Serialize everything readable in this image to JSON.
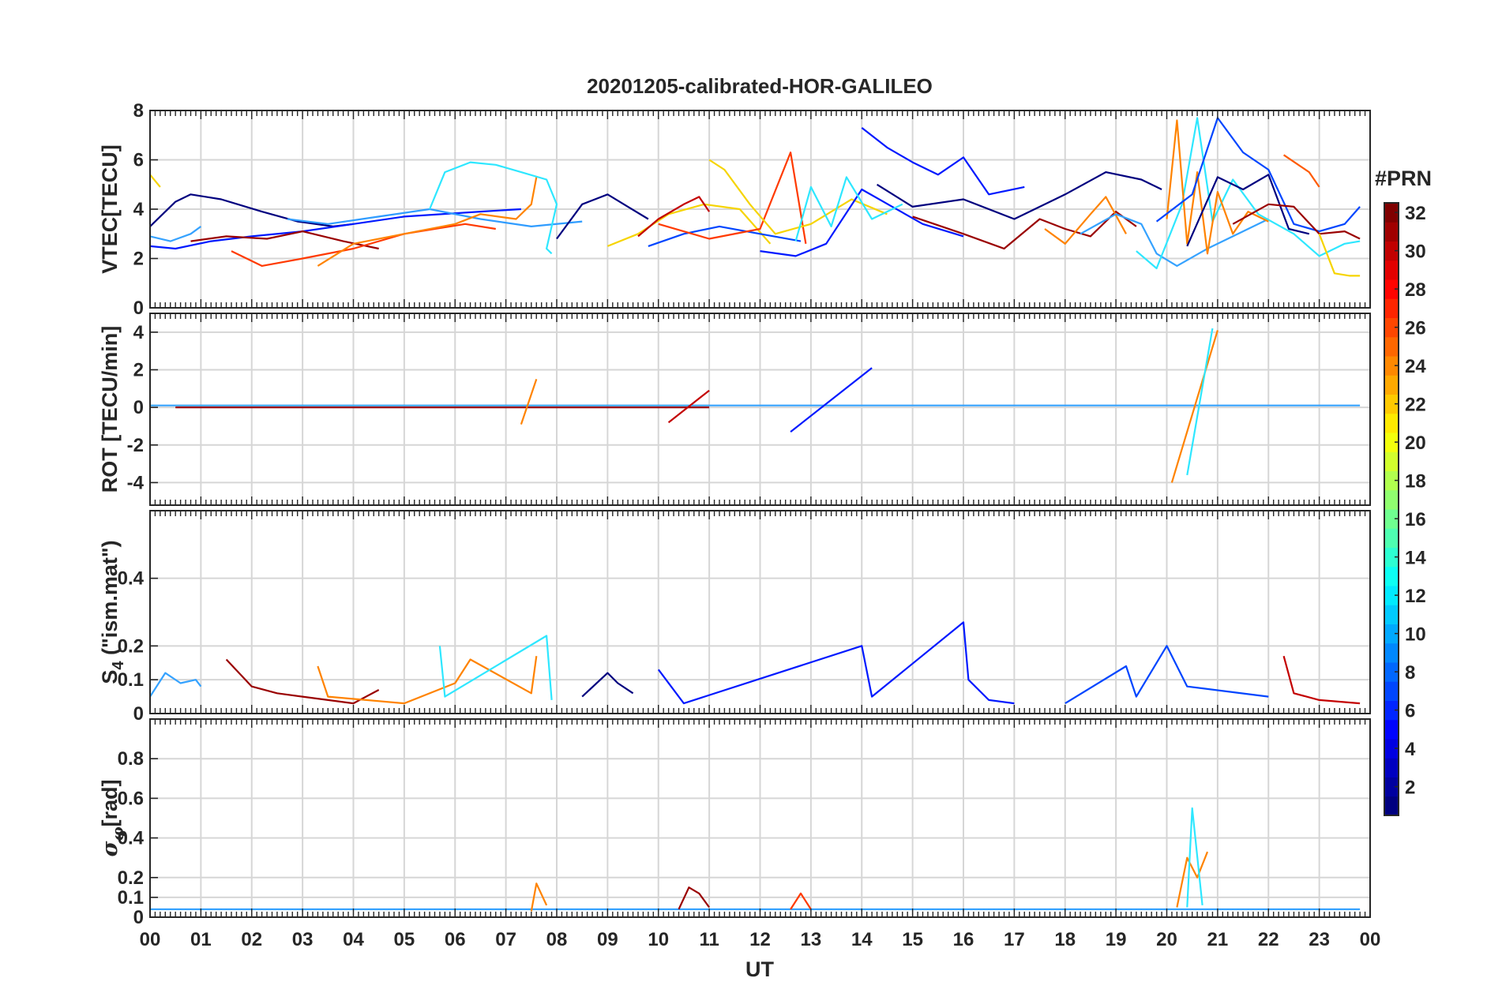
{
  "title": "20201205-calibrated-HOR-GALILEO",
  "colorbar": {
    "label": "#PRN",
    "min": 1,
    "max": 32,
    "ticks": [
      "2",
      "4",
      "6",
      "8",
      "10",
      "12",
      "14",
      "16",
      "18",
      "20",
      "22",
      "24",
      "26",
      "28",
      "30",
      "32"
    ],
    "tick_values": [
      2,
      4,
      6,
      8,
      10,
      12,
      14,
      16,
      18,
      20,
      22,
      24,
      26,
      28,
      30,
      32
    ],
    "colormap": "jet"
  },
  "chart_data": [
    {
      "type": "line",
      "panel": "vtec",
      "ylabel": "VTEC[TECU]",
      "ylim": [
        0,
        8
      ],
      "yticks": [
        0,
        2,
        4,
        6,
        8
      ],
      "ytick_labels": [
        "0",
        "2",
        "4",
        "6",
        "8"
      ],
      "xlim": [
        0,
        24
      ],
      "grid": true,
      "series": [
        {
          "color": "#f6d400",
          "x": [
            0.0,
            0.2
          ],
          "y": [
            5.4,
            4.9
          ]
        },
        {
          "color": "#00007f",
          "x": [
            0.0,
            0.5,
            0.8,
            1.4,
            2.2,
            2.9,
            3.6,
            4.0
          ],
          "y": [
            3.3,
            4.3,
            4.6,
            4.4,
            3.9,
            3.5,
            3.3,
            3.4
          ]
        },
        {
          "color": "#35a2ff",
          "x": [
            0.0,
            0.4,
            0.8,
            1.0
          ],
          "y": [
            2.9,
            2.7,
            3.0,
            3.3
          ]
        },
        {
          "color": "#0019ff",
          "x": [
            0.0,
            0.5,
            1.2,
            2.0,
            3.0,
            4.0,
            5.0,
            6.5,
            7.3
          ],
          "y": [
            2.5,
            2.4,
            2.7,
            2.9,
            3.1,
            3.4,
            3.7,
            3.9,
            4.0
          ]
        },
        {
          "color": "#9a0000",
          "x": [
            0.8,
            1.5,
            2.3,
            3.0,
            3.8,
            4.5
          ],
          "y": [
            2.7,
            2.9,
            2.8,
            3.1,
            2.7,
            2.4
          ]
        },
        {
          "color": "#ff3a00",
          "x": [
            1.6,
            2.2,
            3.0,
            4.0,
            5.0,
            6.2,
            6.8
          ],
          "y": [
            2.3,
            1.7,
            2.0,
            2.4,
            3.0,
            3.4,
            3.2
          ]
        },
        {
          "color": "#2f9cff",
          "x": [
            2.7,
            3.5,
            4.5,
            5.5,
            6.5,
            7.5,
            8.5
          ],
          "y": [
            3.6,
            3.4,
            3.7,
            4.0,
            3.6,
            3.3,
            3.5
          ]
        },
        {
          "color": "#ff8300",
          "x": [
            3.3,
            4.0,
            5.0,
            6.0,
            6.5,
            7.2,
            7.5,
            7.6
          ],
          "y": [
            1.7,
            2.6,
            3.0,
            3.4,
            3.8,
            3.6,
            4.2,
            5.3
          ]
        },
        {
          "color": "#2ee7ff",
          "x": [
            5.5,
            5.8,
            6.3,
            6.8,
            7.3,
            7.8,
            8.0,
            7.8,
            7.9
          ],
          "y": [
            4.0,
            5.5,
            5.9,
            5.8,
            5.5,
            5.2,
            4.2,
            2.4,
            2.2
          ]
        },
        {
          "color": "#00007f",
          "x": [
            8.0,
            8.5,
            9.0,
            9.4,
            9.8
          ],
          "y": [
            2.8,
            4.2,
            4.6,
            4.1,
            3.6
          ]
        },
        {
          "color": "#f6d400",
          "x": [
            9.0,
            9.6,
            10.2,
            10.9,
            11.6,
            12.2
          ],
          "y": [
            2.5,
            3.0,
            3.8,
            4.2,
            4.0,
            2.6
          ]
        },
        {
          "color": "#c30000",
          "x": [
            9.6,
            10.0,
            10.5,
            10.8,
            11.0
          ],
          "y": [
            2.9,
            3.6,
            4.2,
            4.5,
            3.9
          ]
        },
        {
          "color": "#0045ff",
          "x": [
            9.8,
            10.5,
            11.2,
            12.0,
            12.8
          ],
          "y": [
            2.5,
            3.0,
            3.3,
            3.0,
            2.7
          ]
        },
        {
          "color": "#ff3a00",
          "x": [
            10.0,
            11.0,
            12.0,
            12.6,
            12.9
          ],
          "y": [
            3.4,
            2.8,
            3.2,
            6.3,
            2.6
          ]
        },
        {
          "color": "#f6d400",
          "x": [
            11.0,
            11.3,
            11.8,
            12.3,
            13.0,
            13.8,
            14.5
          ],
          "y": [
            6.0,
            5.6,
            4.2,
            3.0,
            3.4,
            4.4,
            3.8
          ]
        },
        {
          "color": "#0019ff",
          "x": [
            12.0,
            12.7,
            13.3,
            14.0,
            14.6,
            15.2,
            16.0
          ],
          "y": [
            2.3,
            2.1,
            2.6,
            4.8,
            4.1,
            3.4,
            2.9
          ]
        },
        {
          "color": "#2ee7ff",
          "x": [
            12.7,
            13.0,
            13.4,
            13.7,
            14.2,
            14.8
          ],
          "y": [
            2.7,
            4.9,
            3.3,
            5.3,
            3.6,
            4.2
          ]
        },
        {
          "color": "#0019ff",
          "x": [
            14.0,
            14.5,
            15.0,
            15.5,
            16.0,
            16.5,
            17.2
          ],
          "y": [
            7.3,
            6.5,
            5.9,
            5.4,
            6.1,
            4.6,
            4.9
          ]
        },
        {
          "color": "#00007f",
          "x": [
            14.3,
            15.0,
            16.0,
            17.0,
            18.0,
            18.8,
            19.5,
            19.9
          ],
          "y": [
            5.0,
            4.1,
            4.4,
            3.6,
            4.6,
            5.5,
            5.2,
            4.8
          ]
        },
        {
          "color": "#9a0000",
          "x": [
            15.0,
            16.0,
            16.8,
            17.5,
            18.0,
            18.5,
            19.0,
            19.4
          ],
          "y": [
            3.7,
            3.0,
            2.4,
            3.6,
            3.2,
            2.9,
            3.9,
            3.3
          ]
        },
        {
          "color": "#ff8300",
          "x": [
            17.6,
            18.0,
            18.5,
            18.8,
            19.2
          ],
          "y": [
            3.2,
            2.6,
            3.8,
            4.5,
            3.0
          ]
        },
        {
          "color": "#35a2ff",
          "x": [
            18.3,
            19.0,
            19.5,
            19.8,
            20.2,
            20.8,
            21.5,
            22.0
          ],
          "y": [
            3.0,
            3.8,
            3.4,
            2.2,
            1.7,
            2.4,
            3.1,
            3.6
          ]
        },
        {
          "color": "#2ee7ff",
          "x": [
            19.4,
            19.8,
            20.3,
            20.6,
            20.9,
            21.3,
            21.8,
            22.5,
            23.0,
            23.5,
            23.8
          ],
          "y": [
            2.3,
            1.6,
            4.2,
            7.7,
            3.5,
            5.2,
            3.8,
            3.0,
            2.1,
            2.6,
            2.7
          ]
        },
        {
          "color": "#ff8300",
          "x": [
            20.0,
            20.2,
            20.4,
            20.6,
            20.8,
            21.0,
            21.3,
            21.6,
            22.0
          ],
          "y": [
            3.6,
            7.6,
            2.6,
            5.5,
            2.2,
            4.7,
            3.0,
            3.9,
            3.5
          ]
        },
        {
          "color": "#0045ff",
          "x": [
            19.8,
            20.5,
            21.0,
            21.5,
            22.0,
            22.5,
            23.0,
            23.5,
            23.8
          ],
          "y": [
            3.5,
            4.6,
            7.7,
            6.3,
            5.6,
            3.4,
            3.1,
            3.4,
            4.1
          ]
        },
        {
          "color": "#00007f",
          "x": [
            20.4,
            21.0,
            21.5,
            22.0,
            22.4,
            22.8
          ],
          "y": [
            2.5,
            5.3,
            4.8,
            5.4,
            3.2,
            3.0
          ]
        },
        {
          "color": "#9a0000",
          "x": [
            21.3,
            22.0,
            22.5,
            23.0,
            23.5,
            23.8
          ],
          "y": [
            3.4,
            4.2,
            4.1,
            3.0,
            3.1,
            2.8
          ]
        },
        {
          "color": "#ff5a00",
          "x": [
            22.3,
            22.8,
            23.0
          ],
          "y": [
            6.2,
            5.5,
            4.9
          ]
        },
        {
          "color": "#f6d400",
          "x": [
            23.0,
            23.3,
            23.6,
            23.8
          ],
          "y": [
            3.0,
            1.4,
            1.3,
            1.3
          ]
        }
      ]
    },
    {
      "type": "line",
      "panel": "rot",
      "ylabel": "ROT [TECU/min]",
      "ylim": [
        -5.2,
        5.0
      ],
      "yticks": [
        -4,
        -2,
        0,
        2,
        4
      ],
      "ytick_labels": [
        "-4",
        "-2",
        "0",
        "2",
        "4"
      ],
      "xlim": [
        0,
        24
      ],
      "grid": true,
      "series": [
        {
          "color": "#35a2ff",
          "x": [
            0.0,
            23.8
          ],
          "y": [
            0.1,
            0.1
          ]
        },
        {
          "color": "#9a0000",
          "x": [
            0.5,
            11.0
          ],
          "y": [
            0.0,
            0.0
          ]
        },
        {
          "color": "#ff8300",
          "x": [
            7.3,
            7.6
          ],
          "y": [
            -0.9,
            1.5
          ]
        },
        {
          "color": "#c30000",
          "x": [
            10.2,
            11.0
          ],
          "y": [
            -0.8,
            0.9
          ]
        },
        {
          "color": "#0019ff",
          "x": [
            12.6,
            14.2
          ],
          "y": [
            -1.3,
            2.1
          ]
        },
        {
          "color": "#ff8300",
          "x": [
            20.1,
            21.0
          ],
          "y": [
            -4.0,
            4.1
          ]
        },
        {
          "color": "#2ee7ff",
          "x": [
            20.4,
            20.9
          ],
          "y": [
            -3.6,
            4.2
          ]
        }
      ]
    },
    {
      "type": "line",
      "panel": "s4",
      "ylabel": "S4 (\"ism.mat\")",
      "ylim": [
        0,
        0.6
      ],
      "yticks": [
        0,
        0.1,
        0.2,
        0.4
      ],
      "ytick_labels": [
        "0",
        "0.1",
        "0.2",
        "0.4"
      ],
      "xlim": [
        0,
        24
      ],
      "grid": true,
      "series": [
        {
          "color": "#35a2ff",
          "x": [
            0.0,
            0.3,
            0.6,
            0.9,
            1.0
          ],
          "y": [
            0.05,
            0.12,
            0.09,
            0.1,
            0.08
          ]
        },
        {
          "color": "#9a0000",
          "x": [
            1.5,
            2.0,
            2.5,
            3.0,
            3.5,
            4.0,
            4.5
          ],
          "y": [
            0.16,
            0.08,
            0.06,
            0.05,
            0.04,
            0.03,
            0.07
          ]
        },
        {
          "color": "#ff8300",
          "x": [
            3.3,
            3.5,
            5.0,
            6.0,
            6.3,
            7.5,
            7.6
          ],
          "y": [
            0.14,
            0.05,
            0.03,
            0.09,
            0.16,
            0.06,
            0.17
          ]
        },
        {
          "color": "#2ee7ff",
          "x": [
            5.7,
            5.8,
            7.8,
            7.9
          ],
          "y": [
            0.2,
            0.05,
            0.23,
            0.04
          ]
        },
        {
          "color": "#00007f",
          "x": [
            8.5,
            9.0,
            9.2,
            9.5
          ],
          "y": [
            0.05,
            0.12,
            0.09,
            0.06
          ]
        },
        {
          "color": "#0019ff",
          "x": [
            10.0,
            10.5,
            14.0,
            14.2,
            16.0,
            16.1,
            16.5,
            17.0
          ],
          "y": [
            0.13,
            0.03,
            0.2,
            0.05,
            0.27,
            0.1,
            0.04,
            0.03
          ]
        },
        {
          "color": "#0045ff",
          "x": [
            18.0,
            19.2,
            19.4,
            20.0,
            20.4,
            22.0
          ],
          "y": [
            0.03,
            0.14,
            0.05,
            0.2,
            0.08,
            0.05
          ]
        },
        {
          "color": "#c30000",
          "x": [
            22.3,
            22.5,
            23.0,
            23.8
          ],
          "y": [
            0.17,
            0.06,
            0.04,
            0.03
          ]
        }
      ]
    },
    {
      "type": "line",
      "panel": "sigma_phi",
      "ylabel": "σφ[rad]",
      "ylim": [
        0,
        1.0
      ],
      "yticks": [
        0,
        0.1,
        0.2,
        0.4,
        0.6,
        0.8
      ],
      "ytick_labels": [
        "0",
        "0.1",
        "0.2",
        "0.4",
        "0.6",
        "0.8"
      ],
      "xlim": [
        0,
        24
      ],
      "grid": true,
      "series": [
        {
          "color": "#35a2ff",
          "x": [
            0.0,
            23.8
          ],
          "y": [
            0.04,
            0.04
          ]
        },
        {
          "color": "#ff8300",
          "x": [
            7.5,
            7.6,
            7.8
          ],
          "y": [
            0.03,
            0.17,
            0.06
          ]
        },
        {
          "color": "#9a0000",
          "x": [
            10.4,
            10.6,
            10.8,
            11.0
          ],
          "y": [
            0.04,
            0.15,
            0.12,
            0.05
          ]
        },
        {
          "color": "#ff3a00",
          "x": [
            12.6,
            12.8,
            13.0
          ],
          "y": [
            0.04,
            0.12,
            0.04
          ]
        },
        {
          "color": "#ff8300",
          "x": [
            20.2,
            20.4,
            20.6,
            20.8
          ],
          "y": [
            0.05,
            0.3,
            0.2,
            0.33
          ]
        },
        {
          "color": "#2ee7ff",
          "x": [
            20.4,
            20.5,
            20.7
          ],
          "y": [
            0.05,
            0.55,
            0.06
          ]
        }
      ]
    }
  ],
  "x_axis": {
    "label": "UT",
    "tick_labels": [
      "00",
      "01",
      "02",
      "03",
      "04",
      "05",
      "06",
      "07",
      "08",
      "09",
      "10",
      "11",
      "12",
      "13",
      "14",
      "15",
      "16",
      "17",
      "18",
      "19",
      "20",
      "21",
      "22",
      "23",
      "00"
    ]
  }
}
